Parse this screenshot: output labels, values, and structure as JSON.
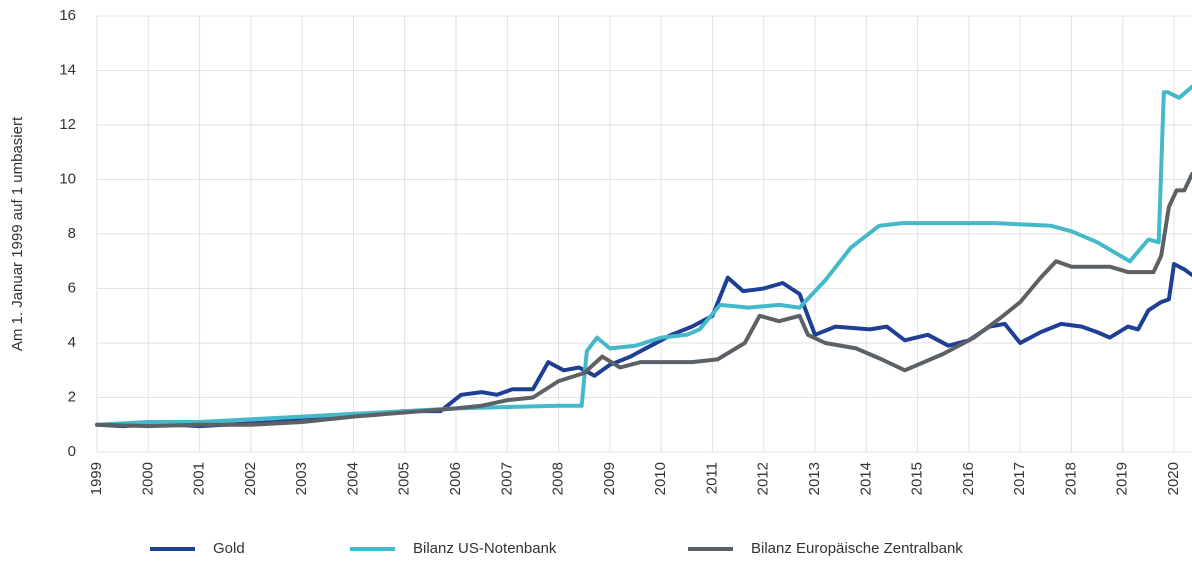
{
  "chart_data": {
    "type": "line",
    "y_label": "Am 1. Januar 1999 auf 1 umbasiert",
    "xlim": [
      1999,
      2020.35
    ],
    "xticks": [
      1999,
      2000,
      2001,
      2002,
      2003,
      2004,
      2005,
      2006,
      2007,
      2008,
      2009,
      2010,
      2011,
      2012,
      2013,
      2014,
      2015,
      2016,
      2017,
      2018,
      2019,
      2020
    ],
    "ylim": [
      0,
      16
    ],
    "yticks": [
      0,
      2,
      4,
      6,
      8,
      10,
      12,
      14,
      16
    ],
    "grid": true,
    "legend": "bottom",
    "series": [
      {
        "name": "Gold",
        "color": "#1f3f94",
        "x": [
          1999,
          1999.5,
          2000,
          2000.5,
          2001,
          2001.5,
          2002,
          2002.5,
          2003,
          2003.5,
          2004,
          2004.5,
          2005,
          2005.7,
          2006.1,
          2006.5,
          2006.8,
          2007.1,
          2007.5,
          2007.8,
          2008.1,
          2008.4,
          2008.7,
          2009,
          2009.4,
          2009.8,
          2010.2,
          2010.6,
          2011,
          2011.3,
          2011.6,
          2012,
          2012.37,
          2012.7,
          2013,
          2013.4,
          2014.07,
          2014.4,
          2014.75,
          2015.2,
          2015.6,
          2016,
          2016.4,
          2016.7,
          2017,
          2017.4,
          2017.8,
          2018.2,
          2018.5,
          2018.75,
          2019.1,
          2019.3,
          2019.5,
          2019.75,
          2019.9,
          2020,
          2020.2,
          2020.35
        ],
        "values": [
          1.0,
          0.95,
          1.0,
          1.0,
          0.95,
          1.0,
          1.05,
          1.1,
          1.25,
          1.3,
          1.4,
          1.4,
          1.5,
          1.5,
          2.1,
          2.2,
          2.1,
          2.3,
          2.3,
          3.3,
          3.0,
          3.1,
          2.8,
          3.2,
          3.5,
          3.9,
          4.3,
          4.6,
          5.0,
          6.4,
          5.9,
          6.0,
          6.2,
          5.8,
          4.3,
          4.6,
          4.5,
          4.6,
          4.1,
          4.3,
          3.9,
          4.1,
          4.6,
          4.7,
          4.0,
          4.4,
          4.7,
          4.6,
          4.4,
          4.2,
          4.6,
          4.5,
          5.2,
          5.5,
          5.6,
          6.9,
          6.7,
          6.5
        ]
      },
      {
        "name": "Bilanz US-Notenbank",
        "color": "#43b9c9",
        "x": [
          1999,
          2000,
          2001,
          2002,
          2003,
          2004,
          2005,
          2006,
          2007,
          2008,
          2008.45,
          2008.55,
          2008.75,
          2009,
          2009.5,
          2010,
          2010.5,
          2010.75,
          2011.15,
          2011.7,
          2012.3,
          2012.7,
          2013.2,
          2013.7,
          2014.25,
          2014.7,
          2015.5,
          2016.5,
          2017.6,
          2018,
          2018.5,
          2019.14,
          2019.5,
          2019.7,
          2019.8,
          2019.88,
          2020.1,
          2020.35
        ],
        "values": [
          1.0,
          1.1,
          1.1,
          1.2,
          1.3,
          1.4,
          1.5,
          1.6,
          1.65,
          1.7,
          1.7,
          3.7,
          4.2,
          3.8,
          3.9,
          4.2,
          4.3,
          4.5,
          5.4,
          5.3,
          5.4,
          5.3,
          6.3,
          7.5,
          8.3,
          8.4,
          8.4,
          8.4,
          8.3,
          8.1,
          7.7,
          7.0,
          7.8,
          7.7,
          13.2,
          13.2,
          13.0,
          13.4
        ]
      },
      {
        "name": "Bilanz Europäische Zentralbank",
        "color": "#5c6166",
        "x": [
          1999,
          2000,
          2001,
          2002,
          2003,
          2004,
          2005,
          2006,
          2006.5,
          2007,
          2007.5,
          2008,
          2008.5,
          2008.85,
          2009.2,
          2009.6,
          2010,
          2010.6,
          2011.1,
          2011.63,
          2011.92,
          2012.3,
          2012.7,
          2012.86,
          2013.2,
          2013.8,
          2014.3,
          2014.75,
          2015.5,
          2016.1,
          2016.6,
          2017,
          2017.4,
          2017.7,
          2018,
          2018.75,
          2019.1,
          2019.6,
          2019.75,
          2019.9,
          2020.05,
          2020.2,
          2020.35
        ],
        "values": [
          1.0,
          0.95,
          1.0,
          1.0,
          1.1,
          1.3,
          1.45,
          1.6,
          1.7,
          1.9,
          2.0,
          2.6,
          2.9,
          3.5,
          3.1,
          3.3,
          3.3,
          3.3,
          3.4,
          4.0,
          5.0,
          4.8,
          5.0,
          4.3,
          4.0,
          3.8,
          3.4,
          3.0,
          3.6,
          4.2,
          4.9,
          5.5,
          6.4,
          7.0,
          6.8,
          6.8,
          6.6,
          6.6,
          7.2,
          9.0,
          9.6,
          9.6,
          10.2
        ]
      }
    ]
  }
}
